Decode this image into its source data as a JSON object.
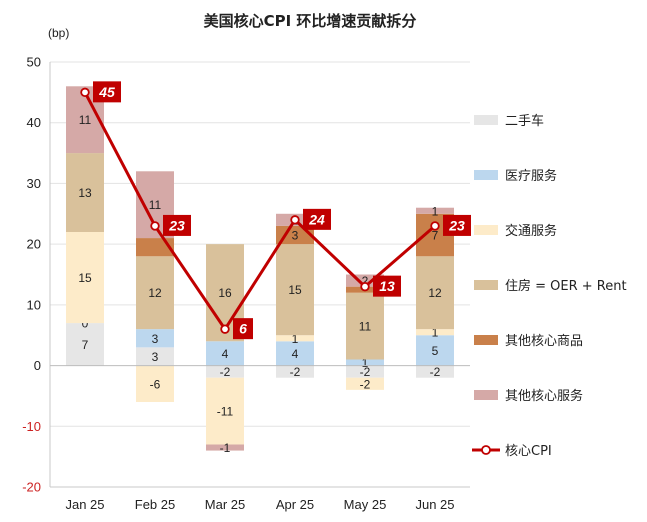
{
  "chart_data": {
    "type": "bar",
    "subtype": "stacked-bar-with-line",
    "title": "美国核心CPI 环比增速贡献拆分",
    "unit_label": "(bp)",
    "categories": [
      "Jan 25",
      "Feb 25",
      "Mar 25",
      "Apr 25",
      "May 25",
      "Jun 25"
    ],
    "ylim": [
      -20,
      50
    ],
    "yticks": [
      -20,
      -10,
      0,
      10,
      20,
      30,
      40,
      50
    ],
    "grid": true,
    "legend_position": "right",
    "series": [
      {
        "name": "二手车",
        "color": "#e6e6e6",
        "values": [
          7,
          3,
          -2,
          -2,
          -2,
          -2
        ],
        "labels": [
          "7",
          "3",
          "-2",
          "-2",
          "-2",
          "-2"
        ]
      },
      {
        "name": "医疗服务",
        "color": "#bcd7ee",
        "values": [
          0,
          3,
          4,
          4,
          1,
          5
        ],
        "labels": [
          "0",
          "3",
          "4",
          "4",
          "1",
          "5"
        ]
      },
      {
        "name": "交通服务",
        "color": "#fdebc9",
        "values": [
          15,
          -6,
          -11,
          1,
          -2,
          1
        ],
        "labels": [
          "15",
          "-6",
          "-11",
          "1",
          "-2",
          "1"
        ]
      },
      {
        "name": "住房 = OER + Rent",
        "color": "#d9c19b",
        "values": [
          13,
          12,
          16,
          15,
          11,
          12
        ],
        "labels": [
          "13",
          "12",
          "16",
          "15",
          "11",
          "12"
        ]
      },
      {
        "name": "其他核心商品",
        "color": "#c9804a",
        "values": [
          0,
          3,
          0,
          3,
          1,
          7
        ],
        "labels": [
          "",
          "",
          "",
          "3",
          "",
          "7"
        ]
      },
      {
        "name": "其他核心服务",
        "color": "#d5a9a7",
        "values": [
          11,
          11,
          -1,
          2,
          2,
          1
        ],
        "labels": [
          "11",
          "11",
          "-1",
          "2",
          "2",
          "1"
        ]
      }
    ],
    "line": {
      "name": "核心CPI",
      "color": "#c00000",
      "values": [
        45,
        23,
        6,
        24,
        13,
        23
      ],
      "labels": [
        "45",
        "23",
        "6",
        "24",
        "13",
        "23"
      ]
    }
  }
}
